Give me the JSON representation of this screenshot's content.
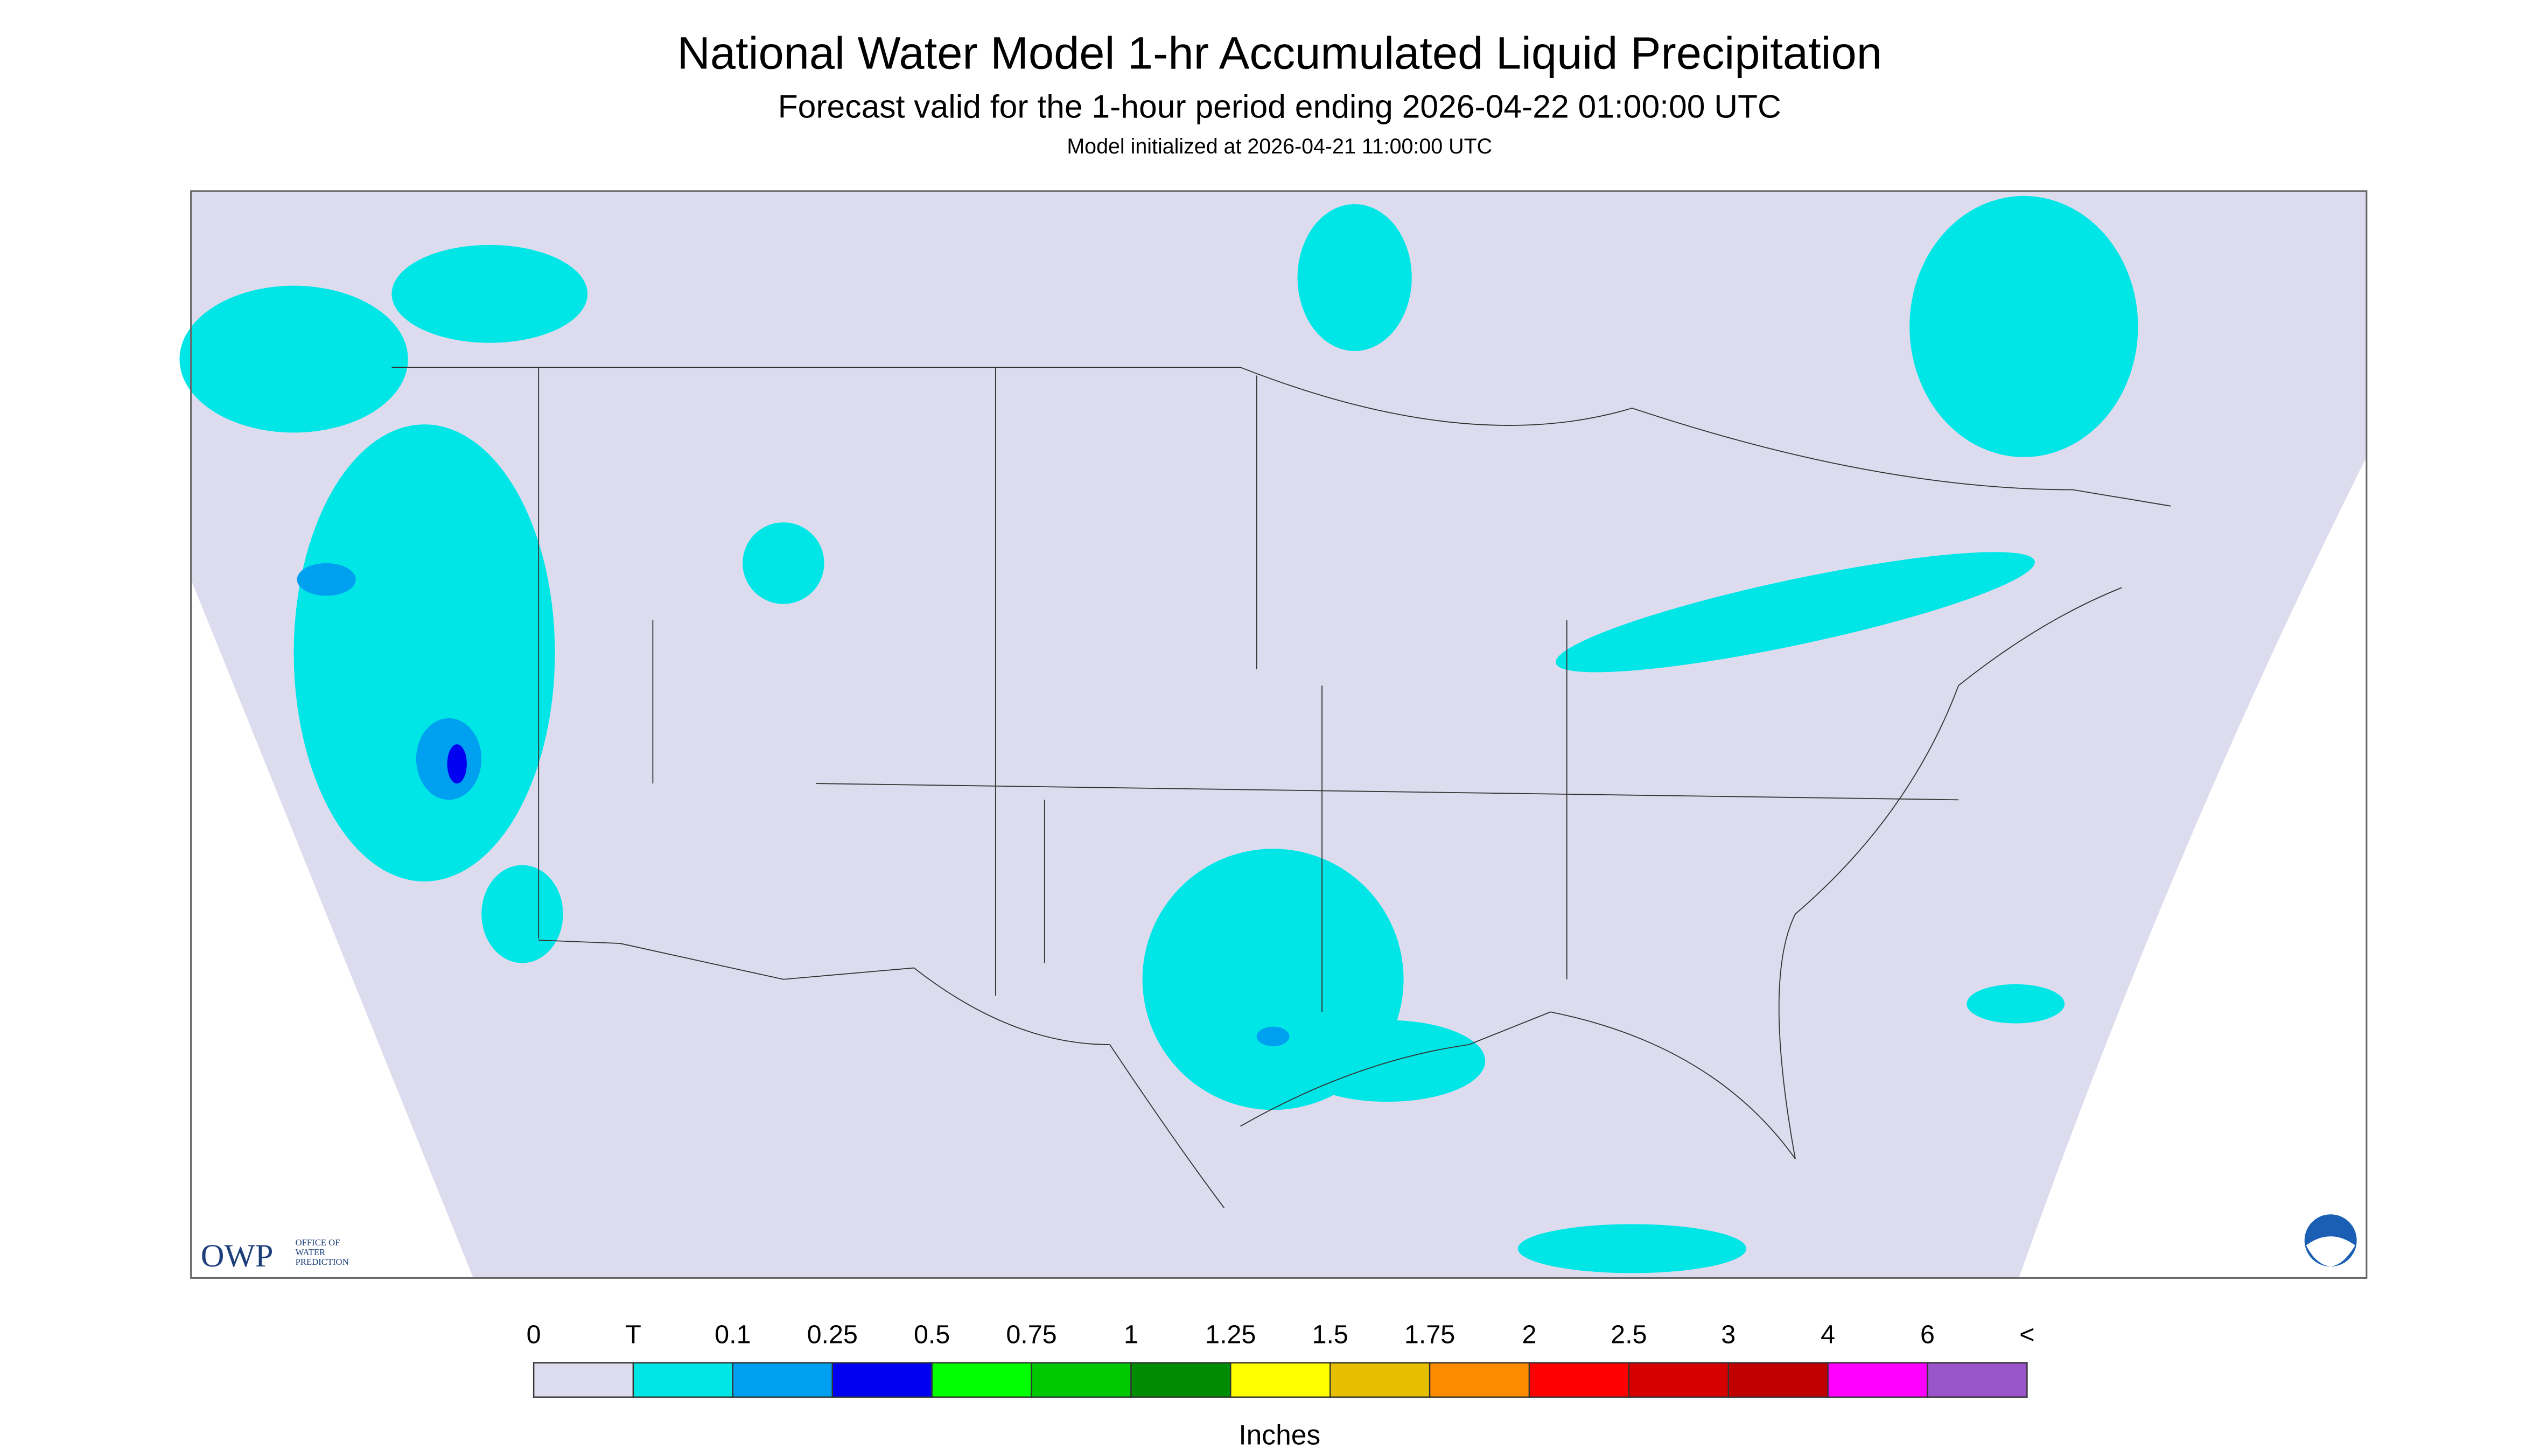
{
  "header": {
    "title": "National Water Model 1-hr Accumulated Liquid Precipitation",
    "subtitle": "Forecast valid for the 1-hour period ending 2026-04-22 01:00:00 UTC",
    "initialized": "Model initialized at 2026-04-21 11:00:00 UTC"
  },
  "logo": {
    "name": "OWP",
    "line1": "OFFICE OF",
    "line2": "WATER",
    "line3": "PREDICTION"
  },
  "legend": {
    "labels": [
      "0",
      "T",
      "0.1",
      "0.25",
      "0.5",
      "0.75",
      "1",
      "1.25",
      "1.5",
      "1.75",
      "2",
      "2.5",
      "3",
      "4",
      "6",
      "<"
    ],
    "colors": [
      "#dcdcee",
      "#00e6e6",
      "#00a0f0",
      "#0000f0",
      "#00ff00",
      "#00c800",
      "#008c00",
      "#ffff00",
      "#e6bf00",
      "#ff8c00",
      "#ff0000",
      "#d60000",
      "#c00000",
      "#ff00ff",
      "#9955c9"
    ],
    "unit": "Inches"
  }
}
